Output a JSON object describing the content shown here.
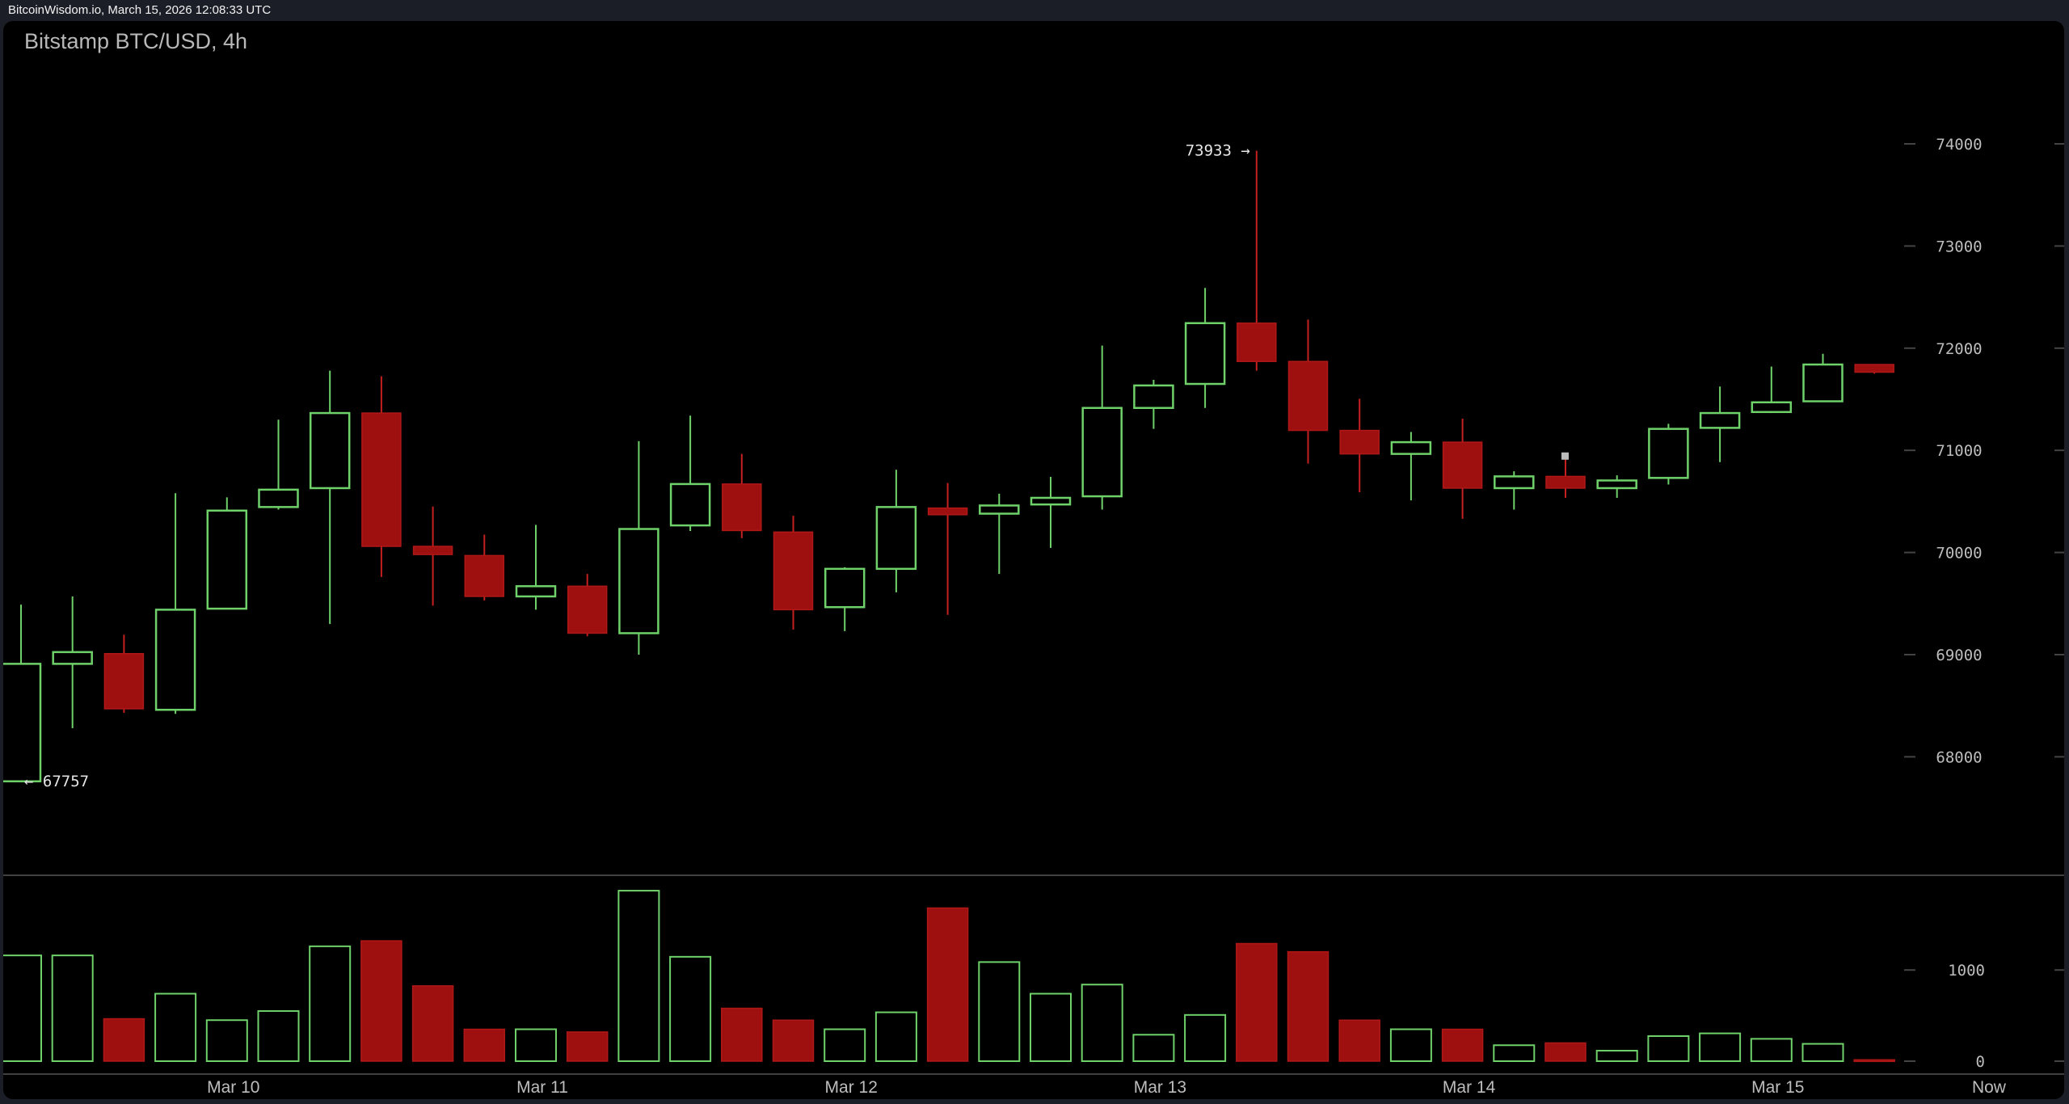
{
  "header": {
    "caption": "BitcoinWisdom.io, March 15, 2026 12:08:33 UTC"
  },
  "chart_data": {
    "type": "candlestick",
    "title": "Bitstamp BTC/USD, 4h",
    "colors": {
      "up": "#6fd16a",
      "down": "#9e1010",
      "background": "#000000",
      "axis_text": "#bdbdbd"
    },
    "price_axis": {
      "ticks": [
        68000,
        69000,
        70000,
        71000,
        72000,
        73000,
        74000
      ]
    },
    "volume_axis": {
      "ticks": [
        0,
        1000
      ]
    },
    "x_ticks": [
      {
        "label": "Mar 10",
        "index": 4
      },
      {
        "label": "Mar 11",
        "index": 10
      },
      {
        "label": "Mar 12",
        "index": 16
      },
      {
        "label": "Mar 13",
        "index": 22
      },
      {
        "label": "Mar 14",
        "index": 28
      },
      {
        "label": "Mar 15",
        "index": 34
      },
      {
        "label": "Now",
        "index": 38.1
      }
    ],
    "annotations": {
      "high": {
        "label": "73933 →",
        "value": 73933,
        "index": 24
      },
      "low": {
        "label": "← 67757",
        "value": 67757,
        "index": 0
      }
    },
    "candles": [
      {
        "o": 67760,
        "h": 69490,
        "l": 67757,
        "c": 68910,
        "v": 1160
      },
      {
        "o": 68910,
        "h": 69570,
        "l": 68280,
        "c": 69025,
        "v": 1160
      },
      {
        "o": 69010,
        "h": 69195,
        "l": 68430,
        "c": 68470,
        "v": 465
      },
      {
        "o": 68460,
        "h": 70580,
        "l": 68420,
        "c": 69440,
        "v": 740
      },
      {
        "o": 69450,
        "h": 70540,
        "l": 69450,
        "c": 70410,
        "v": 450
      },
      {
        "o": 70445,
        "h": 71300,
        "l": 70420,
        "c": 70615,
        "v": 550
      },
      {
        "o": 70630,
        "h": 71780,
        "l": 69300,
        "c": 71365,
        "v": 1260
      },
      {
        "o": 71365,
        "h": 71725,
        "l": 69760,
        "c": 70060,
        "v": 1320
      },
      {
        "o": 70060,
        "h": 70450,
        "l": 69480,
        "c": 69980,
        "v": 826
      },
      {
        "o": 69970,
        "h": 70175,
        "l": 69530,
        "c": 69570,
        "v": 350
      },
      {
        "o": 69570,
        "h": 70270,
        "l": 69440,
        "c": 69670,
        "v": 350
      },
      {
        "o": 69670,
        "h": 69790,
        "l": 69180,
        "c": 69210,
        "v": 320
      },
      {
        "o": 69210,
        "h": 71090,
        "l": 69000,
        "c": 70230,
        "v": 1870
      },
      {
        "o": 70265,
        "h": 71340,
        "l": 70210,
        "c": 70670,
        "v": 1145
      },
      {
        "o": 70670,
        "h": 70965,
        "l": 70140,
        "c": 70215,
        "v": 580
      },
      {
        "o": 70200,
        "h": 70360,
        "l": 69245,
        "c": 69440,
        "v": 450
      },
      {
        "o": 69465,
        "h": 69855,
        "l": 69230,
        "c": 69840,
        "v": 350
      },
      {
        "o": 69840,
        "h": 70810,
        "l": 69610,
        "c": 70445,
        "v": 536
      },
      {
        "o": 70435,
        "h": 70680,
        "l": 69390,
        "c": 70370,
        "v": 1680
      },
      {
        "o": 70380,
        "h": 70575,
        "l": 69790,
        "c": 70460,
        "v": 1087
      },
      {
        "o": 70470,
        "h": 70740,
        "l": 70045,
        "c": 70535,
        "v": 740
      },
      {
        "o": 70550,
        "h": 72025,
        "l": 70420,
        "c": 71415,
        "v": 840
      },
      {
        "o": 71415,
        "h": 71690,
        "l": 71210,
        "c": 71635,
        "v": 290
      },
      {
        "o": 71650,
        "h": 72590,
        "l": 71415,
        "c": 72245,
        "v": 507
      },
      {
        "o": 72245,
        "h": 73933,
        "l": 71780,
        "c": 71870,
        "v": 1290
      },
      {
        "o": 71870,
        "h": 72280,
        "l": 70870,
        "c": 71195,
        "v": 1200
      },
      {
        "o": 71195,
        "h": 71505,
        "l": 70590,
        "c": 70965,
        "v": 450
      },
      {
        "o": 70965,
        "h": 71180,
        "l": 70510,
        "c": 71080,
        "v": 350
      },
      {
        "o": 71080,
        "h": 71310,
        "l": 70330,
        "c": 70630,
        "v": 350
      },
      {
        "o": 70630,
        "h": 70795,
        "l": 70420,
        "c": 70745,
        "v": 175
      },
      {
        "o": 70745,
        "h": 70940,
        "l": 70535,
        "c": 70630,
        "v": 200
      },
      {
        "o": 70630,
        "h": 70755,
        "l": 70535,
        "c": 70705,
        "v": 115
      },
      {
        "o": 70730,
        "h": 71260,
        "l": 70665,
        "c": 71210,
        "v": 275
      },
      {
        "o": 71220,
        "h": 71625,
        "l": 70885,
        "c": 71365,
        "v": 305
      },
      {
        "o": 71375,
        "h": 71820,
        "l": 71365,
        "c": 71470,
        "v": 245
      },
      {
        "o": 71480,
        "h": 71945,
        "l": 71480,
        "c": 71840,
        "v": 190
      },
      {
        "o": 71840,
        "h": 71840,
        "l": 71750,
        "c": 71765,
        "v": 15
      }
    ]
  }
}
